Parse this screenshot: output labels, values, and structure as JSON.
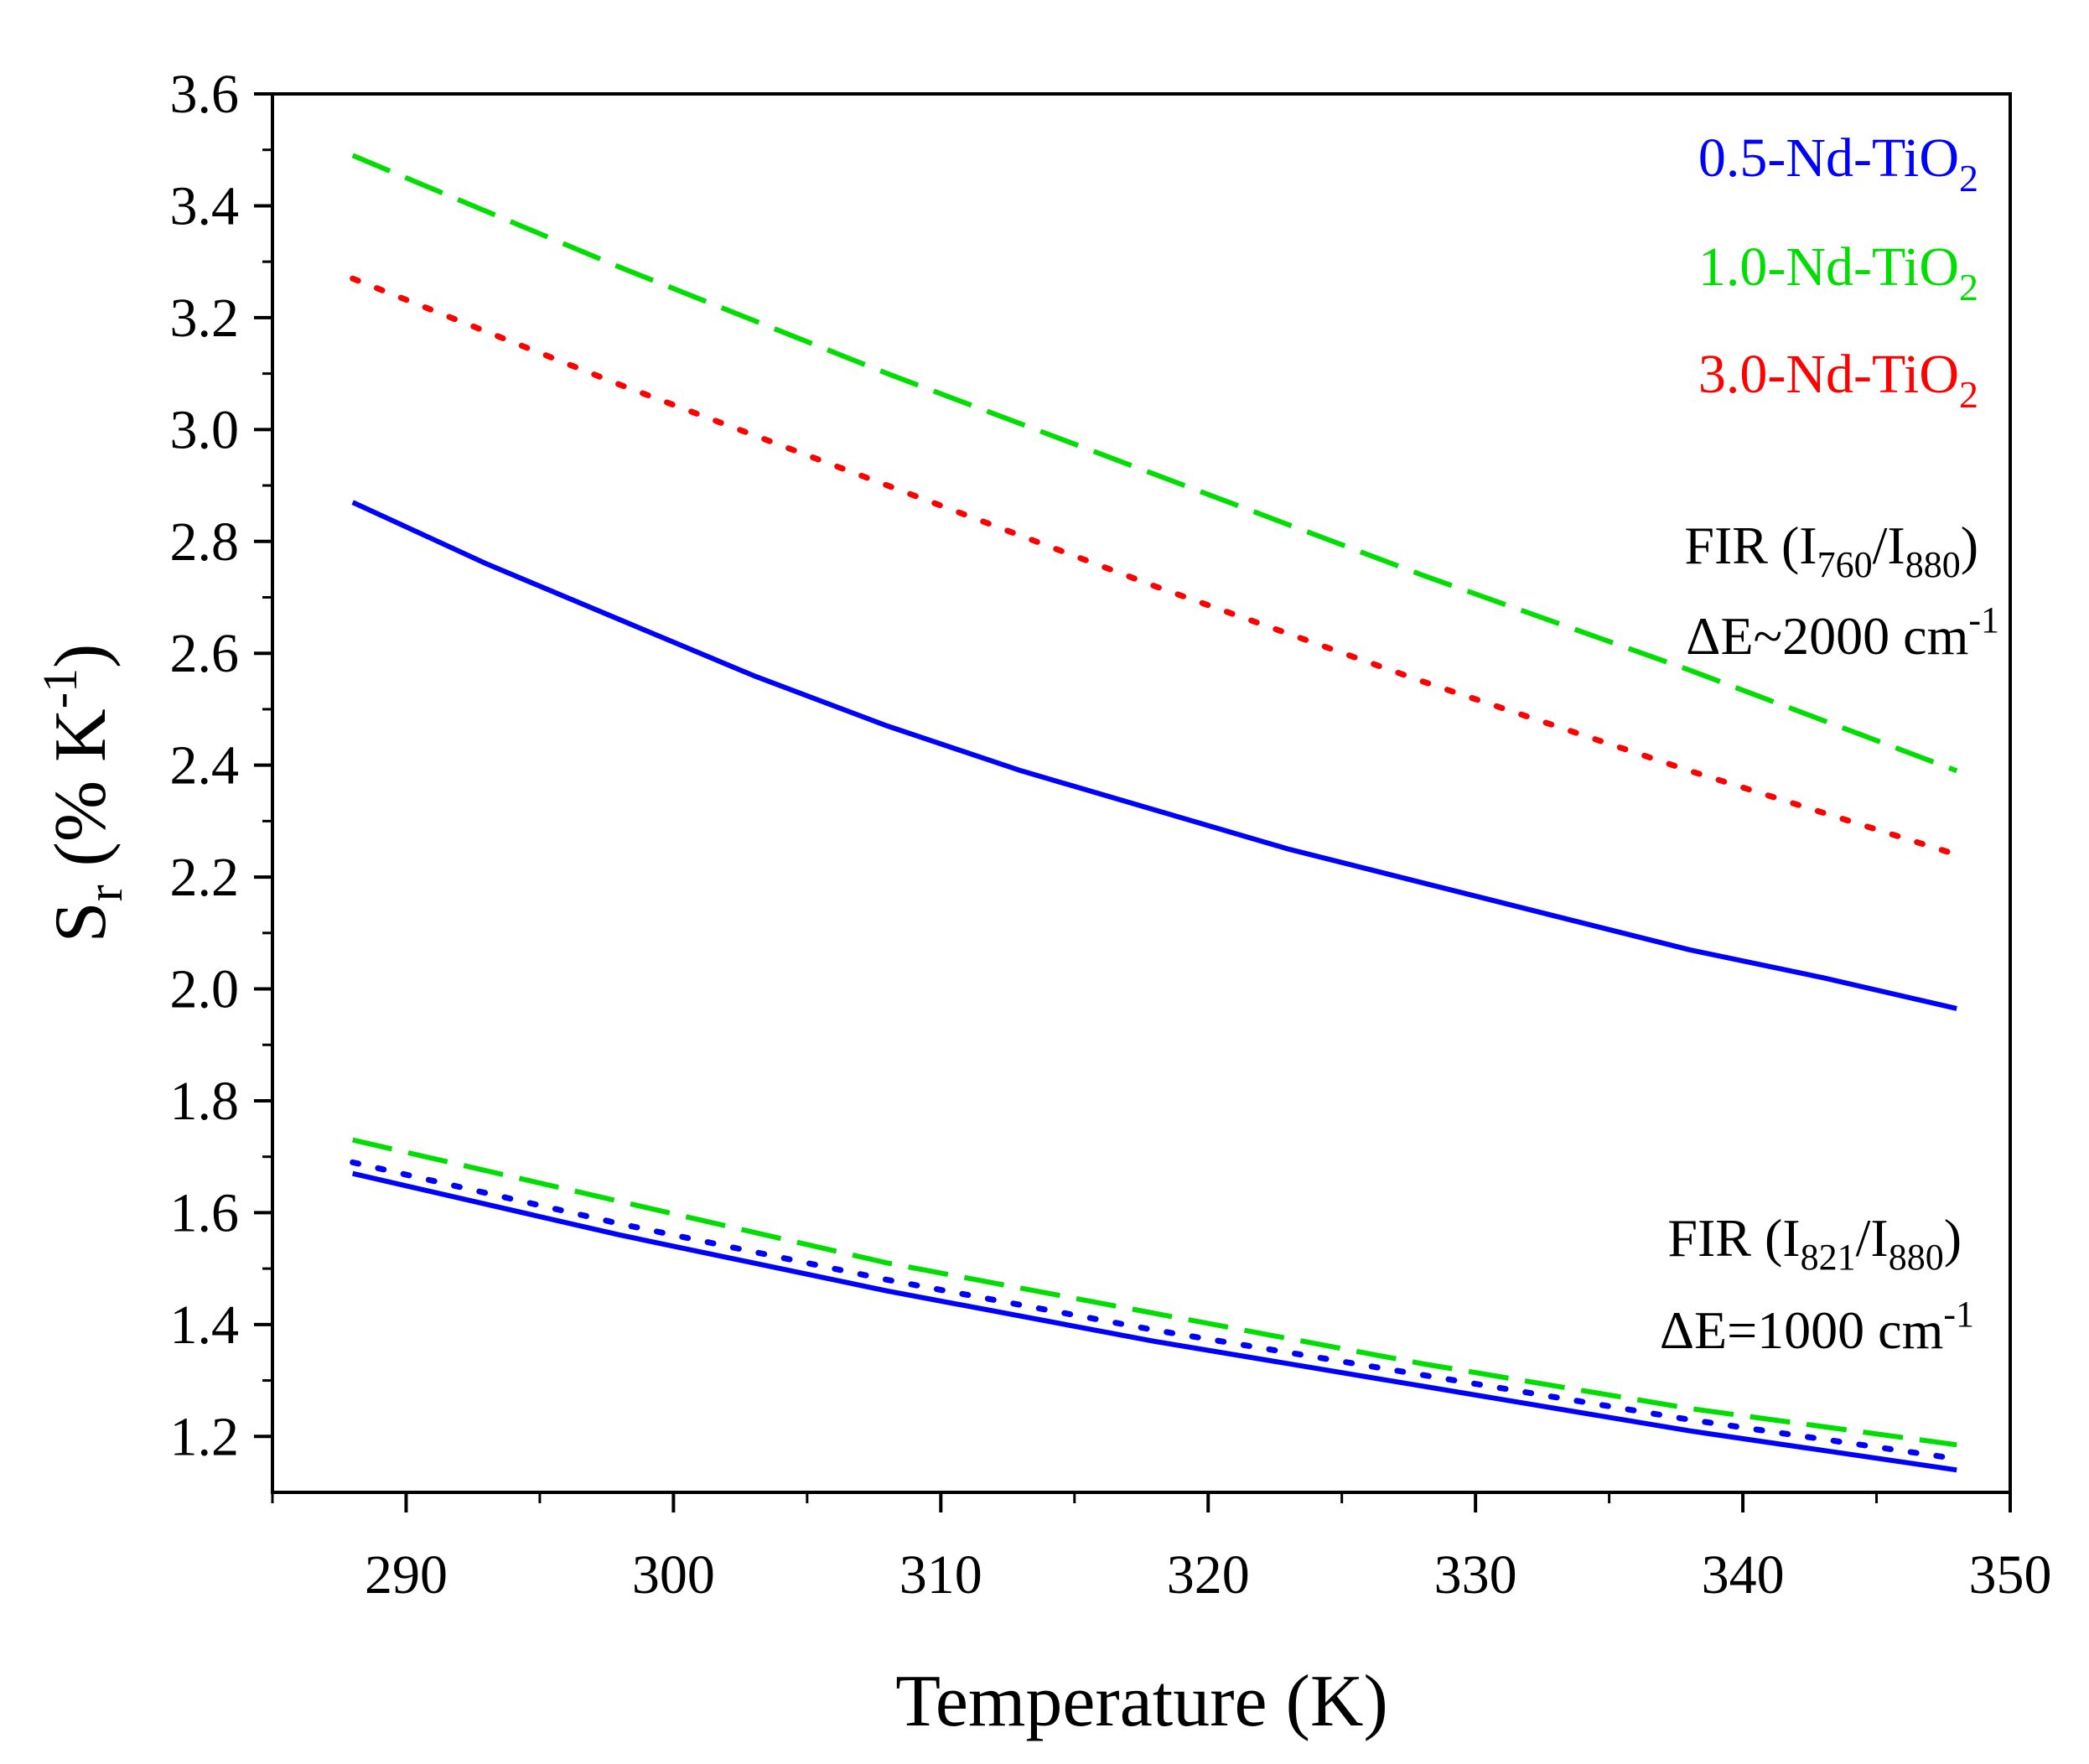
{
  "chart_data": {
    "type": "line",
    "xlabel": "Temperature (K)",
    "ylabel": {
      "main": "S",
      "sub": "r",
      "unit_open": " (% K",
      "unit_sup": "-1",
      "unit_close": ")"
    },
    "xlim": [
      285,
      350
    ],
    "ylim": [
      1.1,
      3.6
    ],
    "x_ticks": [
      290,
      300,
      310,
      320,
      330,
      340,
      350
    ],
    "y_ticks": [
      1.2,
      1.4,
      1.6,
      1.8,
      2.0,
      2.2,
      2.4,
      2.6,
      2.8,
      3.0,
      3.2,
      3.4,
      3.6
    ],
    "grid": false,
    "legend_position": "top-right",
    "legend": [
      {
        "prefix": "0.5-Nd-TiO",
        "sub": "2",
        "color": "#0000ff"
      },
      {
        "prefix": "1.0-Nd-TiO",
        "sub": "2",
        "color": "#00dd00"
      },
      {
        "prefix": "3.0-Nd-TiO",
        "sub": "2",
        "color": "#ff0000"
      }
    ],
    "annotations": [
      {
        "id": "fir-760",
        "line1_pre": "FIR (I",
        "line1_sub1": "760",
        "line1_mid": "/I",
        "line1_sub2": "880",
        "line1_post": ")",
        "line2_pre": "ΔE~2000 cm",
        "line2_sup": "-1"
      },
      {
        "id": "fir-821",
        "line1_pre": "FIR (I",
        "line1_sub1": "821",
        "line1_mid": "/I",
        "line1_sub2": "880",
        "line1_post": ")",
        "line2_pre": "ΔE=1000 cm",
        "line2_sup": "-1"
      }
    ],
    "series": [
      {
        "name": "1.0-Nd-TiO2 FIR(I760/I880)",
        "color": "#00dd00",
        "style": "dashed",
        "x": [
          288,
          298,
          308,
          318,
          328,
          338,
          348
        ],
        "y": [
          3.49,
          3.29,
          3.1,
          2.92,
          2.74,
          2.57,
          2.39
        ]
      },
      {
        "name": "3.0-Nd-TiO2 FIR(I760/I880)",
        "color": "#ff0000",
        "style": "dotted",
        "x": [
          288,
          298,
          308,
          318,
          328,
          338,
          348
        ],
        "y": [
          3.27,
          3.08,
          2.9,
          2.72,
          2.55,
          2.39,
          2.24
        ]
      },
      {
        "name": "0.5-Nd-TiO2 FIR(I760/I880)",
        "color": "#0000ff",
        "style": "solid",
        "x": [
          288,
          293,
          298,
          303,
          308,
          313,
          318,
          323,
          328,
          333,
          338,
          343,
          348
        ],
        "y": [
          2.87,
          2.76,
          2.66,
          2.56,
          2.47,
          2.39,
          2.32,
          2.25,
          2.19,
          2.13,
          2.07,
          2.02,
          1.965
        ]
      },
      {
        "name": "1.0-Nd-TiO2 FIR(I821/I880)",
        "color": "#00dd00",
        "style": "dashed",
        "x": [
          288,
          298,
          308,
          318,
          328,
          338,
          348
        ],
        "y": [
          1.73,
          1.62,
          1.51,
          1.42,
          1.33,
          1.25,
          1.185
        ]
      },
      {
        "name": "0.5-Nd-TiO2 FIR(I821/I880) dotted",
        "color": "#0000ff",
        "style": "dotted",
        "x": [
          288,
          298,
          308,
          318,
          328,
          338,
          348
        ],
        "y": [
          1.69,
          1.58,
          1.48,
          1.39,
          1.31,
          1.23,
          1.16
        ]
      },
      {
        "name": "0.5-Nd-TiO2 FIR(I821/I880)",
        "color": "#0000ff",
        "style": "solid",
        "x": [
          288,
          298,
          308,
          318,
          328,
          338,
          348
        ],
        "y": [
          1.67,
          1.56,
          1.46,
          1.37,
          1.29,
          1.21,
          1.14
        ]
      }
    ]
  }
}
